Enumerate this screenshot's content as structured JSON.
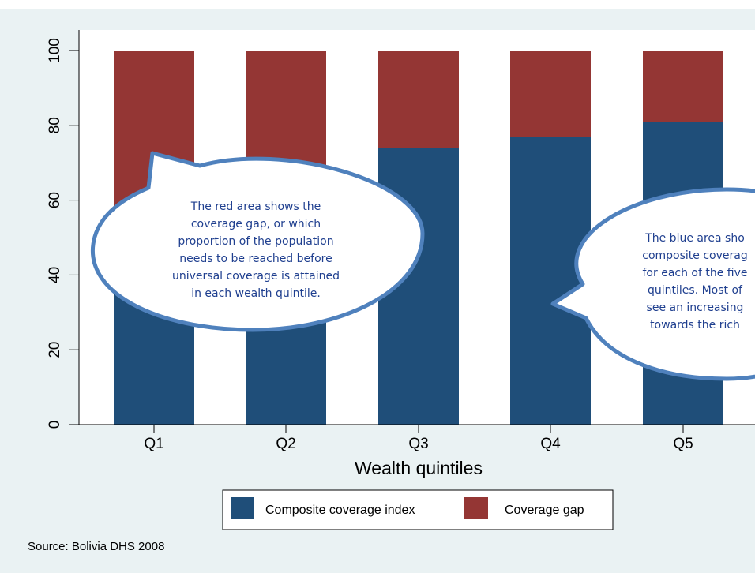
{
  "chart_data": {
    "type": "bar",
    "stacked": true,
    "categories": [
      "Q1",
      "Q2",
      "Q3",
      "Q4",
      "Q5"
    ],
    "series": [
      {
        "name": "Composite coverage index",
        "color": "#1f4e79",
        "values": [
          57,
          66,
          74,
          77,
          81
        ]
      },
      {
        "name": "Coverage gap",
        "color": "#943634",
        "values": [
          43,
          34,
          26,
          23,
          19
        ]
      }
    ],
    "xlabel": "Wealth quintiles",
    "ylabel": "",
    "ylim": [
      0,
      100
    ],
    "yticks": [
      "0",
      "20",
      "40",
      "60",
      "80",
      "100"
    ],
    "grid": false,
    "legend_position": "bottom"
  },
  "source": "Source: Bolivia DHS 2008",
  "callouts": {
    "red": {
      "lines": [
        "The red area shows the",
        "coverage gap, or which",
        "proportion of the population",
        "needs to be reached before",
        "universal coverage is attained",
        "in each wealth quintile."
      ]
    },
    "blue": {
      "lines": [
        "The blue area sho",
        "composite coverag",
        "for each of the five",
        "quintiles. Most of",
        "see an increasing",
        "towards the rich"
      ]
    }
  },
  "colors": {
    "background": "#eaf2f3",
    "plot_background": "#ffffff",
    "callout_border": "#4f81bd",
    "callout_text": "#1f3f8f"
  }
}
